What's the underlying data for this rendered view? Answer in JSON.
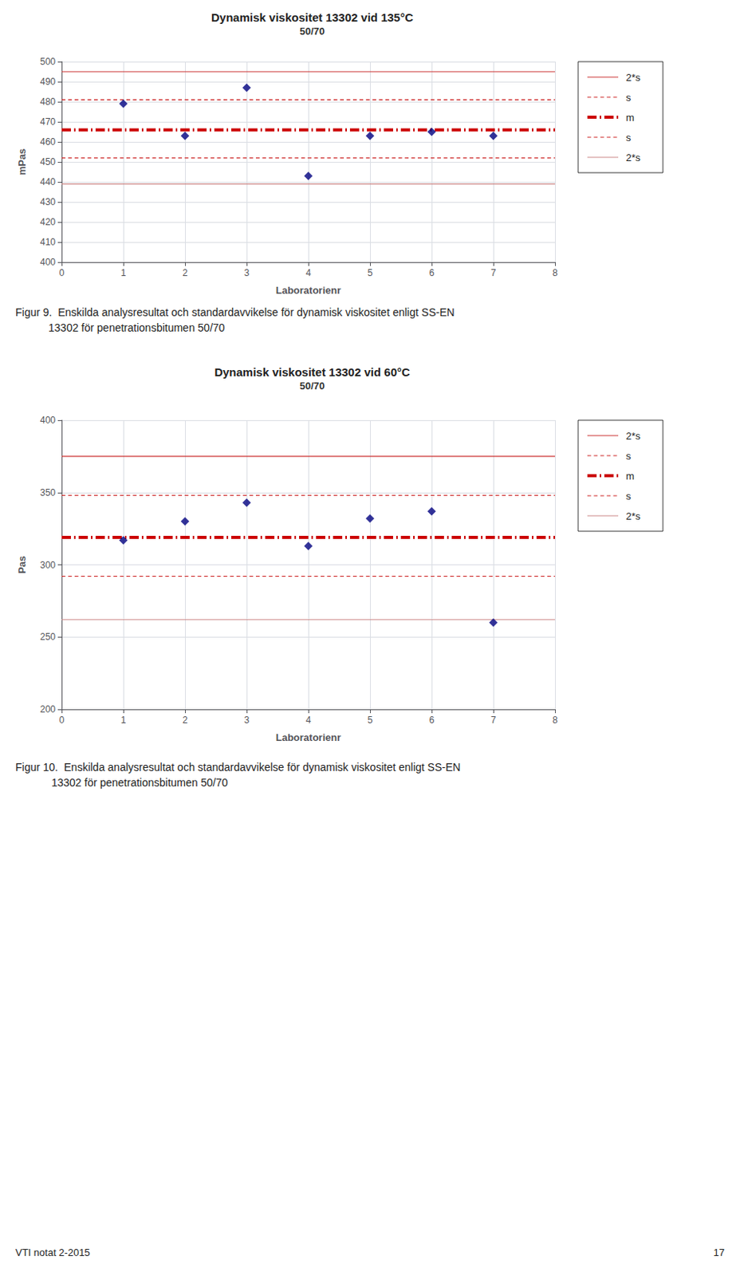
{
  "chart_data": [
    {
      "type": "scatter",
      "title": "Dynamisk viskositet 13302 vid 135°C",
      "subtitle": "50/70",
      "xlabel": "Laboratorienr",
      "ylabel": "mPas",
      "x": [
        1,
        2,
        3,
        4,
        5,
        6,
        7
      ],
      "values": [
        479,
        463,
        487,
        443,
        463,
        465,
        463
      ],
      "color": "#000080",
      "marker": "diamond",
      "xlim": [
        0,
        8
      ],
      "xticks": [
        0,
        1,
        2,
        3,
        4,
        5,
        6,
        7,
        8
      ],
      "ylim": [
        400,
        500
      ],
      "yticks": [
        400,
        410,
        420,
        430,
        440,
        450,
        460,
        470,
        480,
        490,
        500
      ],
      "grid": true,
      "legend": "right",
      "reference_lines": [
        {
          "name": "2*s",
          "value": 495,
          "color": "#cc3333",
          "line_style": "solid"
        },
        {
          "name": "s",
          "value": 481,
          "color": "#cc2222",
          "line_style": "dashed"
        },
        {
          "name": "m",
          "value": 466,
          "color": "#cc0000",
          "line_style": "dashdot"
        },
        {
          "name": "s",
          "value": 452,
          "color": "#cc2222",
          "line_style": "dashed"
        },
        {
          "name": "2*s",
          "value": 439,
          "color": "#cc8888",
          "line_style": "solid"
        }
      ],
      "annotations": [
        "Figur 9.  Enskilda analysresultat och standardavvikelse för dynamisk viskositet enligt SS-EN",
        "           13302 för penetrationsbitumen 50/70"
      ]
    },
    {
      "type": "scatter",
      "title": "Dynamisk viskositet 13302 vid 60°C",
      "subtitle": "50/70",
      "xlabel": "Laboratorienr",
      "ylabel": "Pas",
      "x": [
        1,
        2,
        3,
        4,
        5,
        6,
        7
      ],
      "values": [
        317,
        330,
        343,
        313,
        332,
        337,
        260
      ],
      "color": "#000080",
      "marker": "diamond",
      "xlim": [
        0,
        8
      ],
      "xticks": [
        0,
        1,
        2,
        3,
        4,
        5,
        6,
        7,
        8
      ],
      "ylim": [
        200,
        400
      ],
      "yticks": [
        200,
        250,
        300,
        350,
        400
      ],
      "grid": true,
      "legend": "right",
      "reference_lines": [
        {
          "name": "2*s",
          "value": 375,
          "color": "#cc3333",
          "line_style": "solid"
        },
        {
          "name": "s",
          "value": 348,
          "color": "#cc2222",
          "line_style": "dashed"
        },
        {
          "name": "m",
          "value": 319,
          "color": "#cc0000",
          "line_style": "dashdot"
        },
        {
          "name": "s",
          "value": 292,
          "color": "#cc2222",
          "line_style": "dashed"
        },
        {
          "name": "2*s",
          "value": 262,
          "color": "#cc8888",
          "line_style": "solid"
        }
      ],
      "annotations": [
        "Figur 10.  Enskilda analysresultat och standardavvikelse för dynamisk viskositet enligt SS-EN",
        "            13302 för penetrationsbitumen 50/70"
      ]
    }
  ],
  "annotations": [
    "VTI notat 2-2015",
    "17"
  ]
}
